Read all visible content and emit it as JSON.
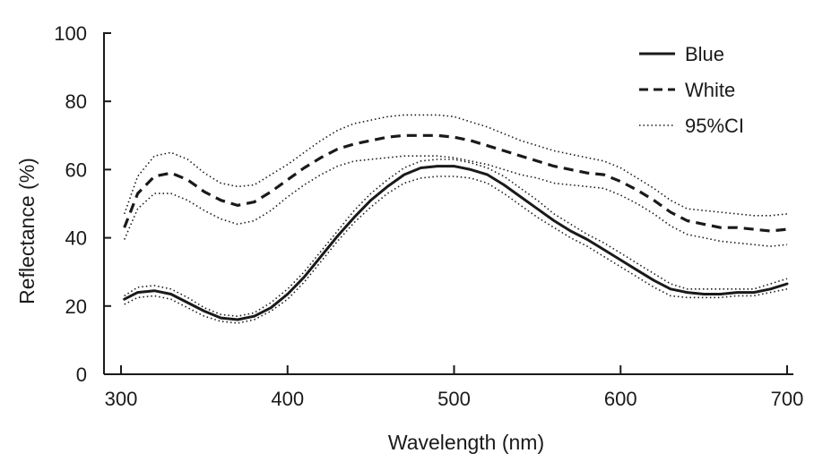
{
  "chart_data": {
    "type": "line",
    "title": "",
    "xlabel": "Wavelength (nm)",
    "ylabel": "Reflectance (%)",
    "xlim": [
      300,
      700
    ],
    "ylim": [
      0,
      100
    ],
    "x_ticks": [
      300,
      400,
      500,
      600,
      700
    ],
    "y_ticks": [
      0,
      20,
      40,
      60,
      80,
      100
    ],
    "grid": false,
    "legend_position": "top-right",
    "legend": [
      {
        "label": "Blue",
        "style": "solid"
      },
      {
        "label": "White",
        "style": "dashed"
      },
      {
        "label": "95%CI",
        "style": "dotted"
      }
    ],
    "x": [
      302,
      310,
      320,
      330,
      340,
      350,
      360,
      370,
      380,
      390,
      400,
      410,
      420,
      430,
      440,
      450,
      460,
      470,
      480,
      490,
      500,
      510,
      520,
      530,
      540,
      550,
      560,
      570,
      580,
      590,
      600,
      610,
      620,
      630,
      640,
      650,
      660,
      670,
      680,
      690,
      700
    ],
    "series": [
      {
        "name": "Blue",
        "style": "solid",
        "values": [
          22,
          24,
          24.5,
          23.5,
          21,
          18.5,
          16.5,
          16,
          17,
          19.5,
          23.5,
          28.5,
          34.5,
          40.5,
          46,
          51,
          55,
          58.5,
          60.5,
          61,
          61,
          60,
          58.5,
          55.5,
          52,
          48.5,
          45,
          42,
          39.5,
          36.5,
          33.5,
          30.5,
          27.5,
          25,
          24,
          23.5,
          23.5,
          24,
          24,
          25,
          26.5
        ]
      },
      {
        "name": "",
        "role": "ci-upper",
        "of": "Blue",
        "style": "dotted",
        "values": [
          23,
          25.5,
          26,
          25,
          22.5,
          19.5,
          17.5,
          17,
          18,
          21,
          25,
          30,
          36,
          42,
          48,
          53,
          57,
          60.5,
          62.5,
          63,
          63,
          62,
          60.5,
          58,
          54.5,
          51,
          47,
          44,
          41,
          38.5,
          35.5,
          32.5,
          29.5,
          26.5,
          25,
          25,
          25,
          25,
          25,
          26.5,
          28
        ]
      },
      {
        "name": "",
        "role": "ci-lower",
        "of": "Blue",
        "style": "dotted",
        "values": [
          20.5,
          22.5,
          23,
          22,
          19.5,
          17,
          15.5,
          15,
          16,
          18.5,
          22,
          27,
          33,
          39,
          44.5,
          49,
          53,
          56,
          57.5,
          58,
          58,
          57.5,
          56,
          53,
          49.5,
          46,
          43,
          40,
          37.5,
          34.5,
          31.5,
          28.5,
          25.5,
          23,
          22.5,
          22.5,
          22.5,
          23,
          23,
          24,
          25
        ]
      },
      {
        "name": "White",
        "style": "dashed",
        "values": [
          43,
          53,
          58,
          59,
          57,
          53.5,
          51,
          49.5,
          50.5,
          53.5,
          57,
          60.5,
          63.5,
          66,
          67.5,
          68.5,
          69.5,
          70,
          70,
          70,
          69.5,
          68.5,
          67,
          65.5,
          64,
          62.5,
          61,
          60,
          59,
          58.5,
          56.5,
          54,
          51,
          47.5,
          45,
          44,
          43,
          43,
          42.5,
          42,
          42.5
        ]
      },
      {
        "name": "",
        "role": "ci-upper",
        "of": "White",
        "style": "dotted",
        "values": [
          47,
          58,
          64,
          65,
          63,
          59,
          56,
          55,
          55.5,
          58.5,
          61.5,
          65,
          68.5,
          71.5,
          73.5,
          74.5,
          75.5,
          76,
          76,
          76,
          75.5,
          74,
          72.5,
          70.5,
          68.5,
          67,
          65.5,
          64.5,
          63.5,
          62.5,
          60.5,
          57.5,
          54.5,
          51,
          48.5,
          48,
          47.5,
          47,
          46.5,
          46.5,
          47
        ]
      },
      {
        "name": "",
        "role": "ci-lower",
        "of": "White",
        "style": "dotted",
        "values": [
          39.5,
          48.5,
          53,
          53,
          51,
          48,
          45.5,
          44,
          45,
          48,
          52,
          55.5,
          58.5,
          61,
          62.5,
          63,
          63.5,
          64,
          64,
          64,
          63.5,
          62.5,
          61.5,
          60,
          58.5,
          57.5,
          56,
          55.5,
          55,
          54.5,
          52.5,
          50,
          47,
          43.5,
          41,
          40,
          39,
          38.5,
          38,
          37.5,
          38
        ]
      }
    ]
  }
}
